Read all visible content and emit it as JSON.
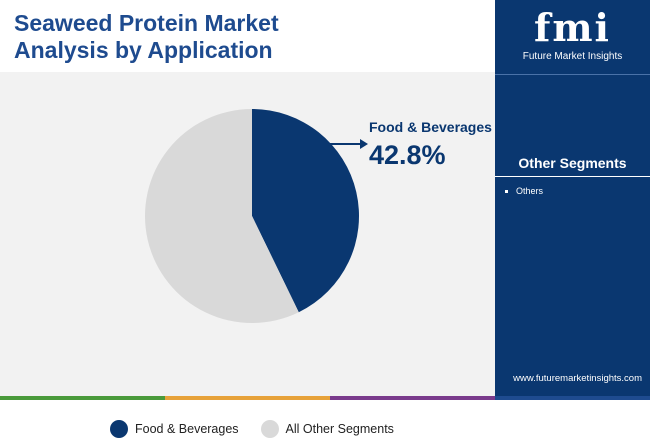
{
  "header": {
    "title_line1": "Seaweed Protein Market",
    "title_line2": "Analysis by Application"
  },
  "logo": {
    "word": "fmi",
    "tagline": "Future Market Insights"
  },
  "side_panel": {
    "segments_title": "Other Segments",
    "segments": [
      "Others"
    ],
    "website": "www.futuremarketinsights.com"
  },
  "colors": {
    "primary": "#0a3770",
    "secondary": "#d9d9d9",
    "title": "#1e4b8f",
    "panel": "#0a3770"
  },
  "chart_data": {
    "type": "pie",
    "title": "Seaweed Protein Market Analysis by Application",
    "slices": [
      {
        "label": "Food & Beverages",
        "value": 42.8,
        "color": "#0a3770"
      },
      {
        "label": "All Other Segments",
        "value": 57.2,
        "color": "#d9d9d9"
      }
    ],
    "callout": {
      "label": "Food & Beverages",
      "value": "42.8%"
    },
    "legend": [
      "Food & Beverages",
      "All Other Segments"
    ],
    "legend_position": "bottom"
  }
}
